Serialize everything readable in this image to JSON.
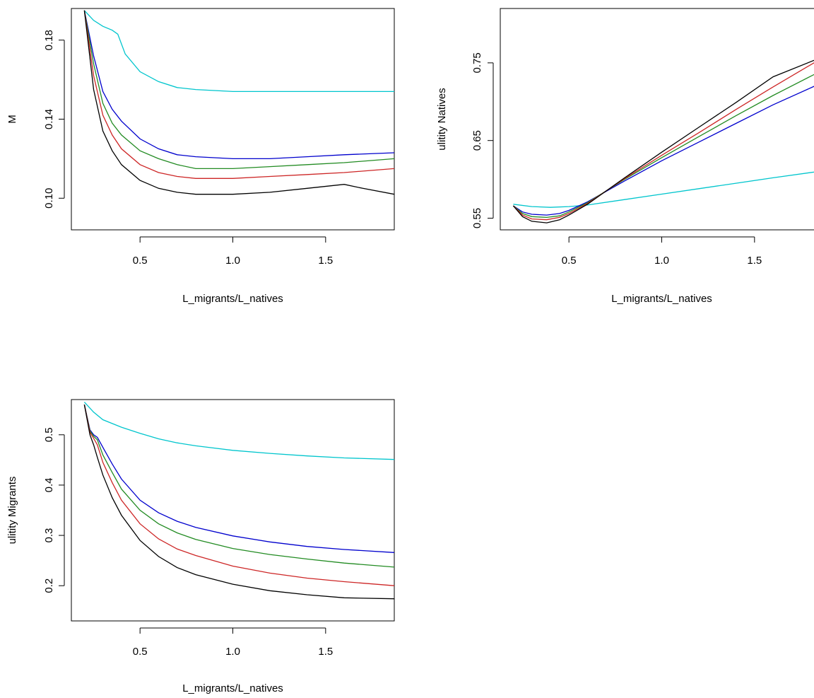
{
  "chart_data": [
    {
      "type": "line",
      "xlabel": "L_migrants/L_natives",
      "ylabel": "M",
      "xlim": [
        0.13,
        1.87
      ],
      "ylim": [
        0.084,
        0.196
      ],
      "xticks": [
        "0.5",
        "1.0",
        "1.5"
      ],
      "yticks": [
        "0.10",
        "0.14",
        "0.18"
      ],
      "series": [
        {
          "color": "#00c5cd",
          "x": [
            0.2,
            0.25,
            0.3,
            0.35,
            0.38,
            0.42,
            0.5,
            0.6,
            0.7,
            0.8,
            1.0,
            1.2,
            1.4,
            1.6,
            1.87
          ],
          "y": [
            0.195,
            0.19,
            0.187,
            0.185,
            0.183,
            0.173,
            0.164,
            0.159,
            0.156,
            0.155,
            0.154,
            0.154,
            0.154,
            0.154,
            0.154
          ]
        },
        {
          "color": "#0000cd",
          "x": [
            0.2,
            0.25,
            0.3,
            0.35,
            0.4,
            0.5,
            0.6,
            0.7,
            0.8,
            1.0,
            1.2,
            1.4,
            1.6,
            1.87
          ],
          "y": [
            0.195,
            0.172,
            0.154,
            0.145,
            0.139,
            0.13,
            0.125,
            0.122,
            0.121,
            0.12,
            0.12,
            0.121,
            0.122,
            0.123
          ]
        },
        {
          "color": "#228b22",
          "x": [
            0.2,
            0.25,
            0.3,
            0.35,
            0.4,
            0.5,
            0.6,
            0.7,
            0.8,
            1.0,
            1.2,
            1.4,
            1.6,
            1.87
          ],
          "y": [
            0.195,
            0.168,
            0.148,
            0.138,
            0.132,
            0.124,
            0.12,
            0.117,
            0.115,
            0.115,
            0.116,
            0.117,
            0.118,
            0.12
          ]
        },
        {
          "color": "#cd2626",
          "x": [
            0.2,
            0.25,
            0.3,
            0.35,
            0.4,
            0.5,
            0.6,
            0.7,
            0.8,
            1.0,
            1.2,
            1.4,
            1.6,
            1.87
          ],
          "y": [
            0.195,
            0.162,
            0.142,
            0.132,
            0.125,
            0.117,
            0.113,
            0.111,
            0.11,
            0.11,
            0.111,
            0.112,
            0.113,
            0.115
          ]
        },
        {
          "color": "#000000",
          "x": [
            0.2,
            0.25,
            0.3,
            0.35,
            0.4,
            0.5,
            0.6,
            0.7,
            0.8,
            1.0,
            1.2,
            1.4,
            1.6,
            1.7,
            1.87
          ],
          "y": [
            0.195,
            0.155,
            0.134,
            0.124,
            0.117,
            0.109,
            0.105,
            0.103,
            0.102,
            0.102,
            0.103,
            0.105,
            0.107,
            0.105,
            0.102
          ]
        }
      ]
    },
    {
      "type": "line",
      "xlabel": "L_migrants/L_natives",
      "ylabel": "ulitity Natives",
      "xlim": [
        0.13,
        1.87
      ],
      "ylim": [
        0.535,
        0.82
      ],
      "xticks": [
        "0.5",
        "1.0",
        "1.5"
      ],
      "yticks": [
        "0.55",
        "0.65",
        "0.75"
      ],
      "series": [
        {
          "color": "#00c5cd",
          "x": [
            0.2,
            0.3,
            0.4,
            0.5,
            0.6,
            0.8,
            1.0,
            1.2,
            1.4,
            1.6,
            1.87
          ],
          "y": [
            0.568,
            0.565,
            0.564,
            0.565,
            0.567,
            0.574,
            0.581,
            0.588,
            0.595,
            0.602,
            0.611
          ]
        },
        {
          "color": "#0000cd",
          "x": [
            0.2,
            0.25,
            0.3,
            0.38,
            0.45,
            0.5,
            0.6,
            0.8,
            1.0,
            1.2,
            1.4,
            1.6,
            1.87
          ],
          "y": [
            0.566,
            0.558,
            0.555,
            0.554,
            0.556,
            0.56,
            0.571,
            0.598,
            0.624,
            0.648,
            0.672,
            0.696,
            0.725
          ]
        },
        {
          "color": "#228b22",
          "x": [
            0.2,
            0.25,
            0.3,
            0.38,
            0.45,
            0.5,
            0.6,
            0.8,
            1.0,
            1.2,
            1.4,
            1.6,
            1.87
          ],
          "y": [
            0.566,
            0.556,
            0.552,
            0.551,
            0.553,
            0.558,
            0.57,
            0.6,
            0.628,
            0.655,
            0.682,
            0.708,
            0.741
          ]
        },
        {
          "color": "#cd2626",
          "x": [
            0.2,
            0.25,
            0.3,
            0.38,
            0.45,
            0.5,
            0.6,
            0.8,
            1.0,
            1.2,
            1.4,
            1.6,
            1.87
          ],
          "y": [
            0.566,
            0.554,
            0.549,
            0.548,
            0.551,
            0.556,
            0.569,
            0.601,
            0.631,
            0.66,
            0.69,
            0.719,
            0.757
          ]
        },
        {
          "color": "#000000",
          "x": [
            0.2,
            0.25,
            0.3,
            0.38,
            0.45,
            0.5,
            0.6,
            0.8,
            1.0,
            1.2,
            1.4,
            1.6,
            1.87
          ],
          "y": [
            0.566,
            0.552,
            0.546,
            0.544,
            0.548,
            0.554,
            0.568,
            0.602,
            0.635,
            0.667,
            0.699,
            0.732,
            0.758
          ]
        }
      ]
    },
    {
      "type": "line",
      "xlabel": "L_migrants/L_natives",
      "ylabel": "ulitity Migrants",
      "xlim": [
        0.13,
        1.87
      ],
      "ylim": [
        0.13,
        0.57
      ],
      "xticks": [
        "0.5",
        "1.0",
        "1.5"
      ],
      "yticks": [
        "0.2",
        "0.3",
        "0.4",
        "0.5"
      ],
      "series": [
        {
          "color": "#00c5cd",
          "x": [
            0.2,
            0.25,
            0.3,
            0.4,
            0.5,
            0.6,
            0.7,
            0.8,
            1.0,
            1.2,
            1.4,
            1.6,
            1.87
          ],
          "y": [
            0.565,
            0.545,
            0.53,
            0.515,
            0.503,
            0.492,
            0.484,
            0.478,
            0.469,
            0.463,
            0.458,
            0.454,
            0.451
          ]
        },
        {
          "color": "#0000cd",
          "x": [
            0.2,
            0.23,
            0.25,
            0.27,
            0.3,
            0.35,
            0.4,
            0.5,
            0.6,
            0.7,
            0.8,
            1.0,
            1.2,
            1.4,
            1.6,
            1.87
          ],
          "y": [
            0.56,
            0.51,
            0.5,
            0.495,
            0.475,
            0.442,
            0.412,
            0.37,
            0.345,
            0.328,
            0.316,
            0.299,
            0.287,
            0.278,
            0.272,
            0.266
          ]
        },
        {
          "color": "#228b22",
          "x": [
            0.2,
            0.23,
            0.25,
            0.27,
            0.3,
            0.35,
            0.4,
            0.5,
            0.6,
            0.7,
            0.8,
            1.0,
            1.2,
            1.4,
            1.6,
            1.87
          ],
          "y": [
            0.56,
            0.508,
            0.497,
            0.49,
            0.46,
            0.425,
            0.392,
            0.35,
            0.323,
            0.305,
            0.292,
            0.274,
            0.262,
            0.253,
            0.245,
            0.237
          ]
        },
        {
          "color": "#cd2626",
          "x": [
            0.2,
            0.23,
            0.25,
            0.27,
            0.3,
            0.35,
            0.4,
            0.5,
            0.6,
            0.7,
            0.8,
            1.0,
            1.2,
            1.4,
            1.6,
            1.87
          ],
          "y": [
            0.56,
            0.505,
            0.493,
            0.48,
            0.445,
            0.405,
            0.37,
            0.323,
            0.293,
            0.273,
            0.26,
            0.239,
            0.225,
            0.215,
            0.208,
            0.2
          ]
        },
        {
          "color": "#000000",
          "x": [
            0.2,
            0.23,
            0.25,
            0.27,
            0.3,
            0.35,
            0.4,
            0.5,
            0.6,
            0.7,
            0.8,
            1.0,
            1.2,
            1.4,
            1.6,
            1.87
          ],
          "y": [
            0.56,
            0.5,
            0.48,
            0.455,
            0.42,
            0.375,
            0.34,
            0.29,
            0.258,
            0.236,
            0.222,
            0.203,
            0.19,
            0.182,
            0.176,
            0.174
          ]
        }
      ]
    }
  ]
}
